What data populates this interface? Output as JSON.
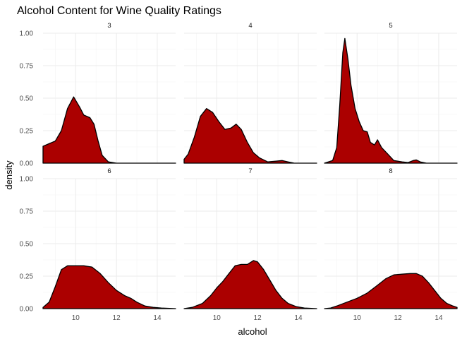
{
  "chart_data": {
    "type": "area",
    "title": "Alcohol Content for Wine Quality Ratings",
    "xlabel": "alcohol",
    "ylabel": "density",
    "xlim": [
      8.4,
      14.9
    ],
    "ylim": [
      0,
      1.0
    ],
    "x_ticks": [
      10,
      12,
      14
    ],
    "y_ticks": [
      0.0,
      0.25,
      0.5,
      0.75,
      1.0
    ],
    "x_tick_labels": [
      "10",
      "12",
      "14"
    ],
    "y_tick_labels": [
      "0.00",
      "0.25",
      "0.50",
      "0.75",
      "1.00"
    ],
    "fill_color": "#ab0000",
    "line_color": "#000000",
    "grid": true,
    "facets": [
      {
        "label": "3",
        "points": [
          [
            8.4,
            0.13
          ],
          [
            8.7,
            0.15
          ],
          [
            9.0,
            0.17
          ],
          [
            9.3,
            0.25
          ],
          [
            9.6,
            0.42
          ],
          [
            9.9,
            0.51
          ],
          [
            10.2,
            0.43
          ],
          [
            10.4,
            0.37
          ],
          [
            10.7,
            0.35
          ],
          [
            10.9,
            0.3
          ],
          [
            11.1,
            0.17
          ],
          [
            11.3,
            0.06
          ],
          [
            11.6,
            0.01
          ],
          [
            12.0,
            0.0
          ],
          [
            13.0,
            0.0
          ],
          [
            14.9,
            0.0
          ]
        ]
      },
      {
        "label": "4",
        "points": [
          [
            8.4,
            0.03
          ],
          [
            8.6,
            0.07
          ],
          [
            8.9,
            0.2
          ],
          [
            9.2,
            0.36
          ],
          [
            9.5,
            0.42
          ],
          [
            9.8,
            0.39
          ],
          [
            10.1,
            0.32
          ],
          [
            10.4,
            0.26
          ],
          [
            10.7,
            0.27
          ],
          [
            10.95,
            0.3
          ],
          [
            11.2,
            0.26
          ],
          [
            11.5,
            0.16
          ],
          [
            11.8,
            0.08
          ],
          [
            12.1,
            0.04
          ],
          [
            12.5,
            0.01
          ],
          [
            12.9,
            0.015
          ],
          [
            13.2,
            0.02
          ],
          [
            13.5,
            0.01
          ],
          [
            13.8,
            0.0
          ],
          [
            14.9,
            0.0
          ]
        ]
      },
      {
        "label": "5",
        "points": [
          [
            8.4,
            0.0
          ],
          [
            8.8,
            0.02
          ],
          [
            9.0,
            0.12
          ],
          [
            9.15,
            0.45
          ],
          [
            9.3,
            0.85
          ],
          [
            9.4,
            0.96
          ],
          [
            9.55,
            0.8
          ],
          [
            9.7,
            0.6
          ],
          [
            9.9,
            0.42
          ],
          [
            10.1,
            0.32
          ],
          [
            10.3,
            0.25
          ],
          [
            10.5,
            0.24
          ],
          [
            10.65,
            0.16
          ],
          [
            10.85,
            0.14
          ],
          [
            11.0,
            0.18
          ],
          [
            11.2,
            0.12
          ],
          [
            11.5,
            0.07
          ],
          [
            11.8,
            0.02
          ],
          [
            12.2,
            0.01
          ],
          [
            12.5,
            0.005
          ],
          [
            12.75,
            0.02
          ],
          [
            12.9,
            0.025
          ],
          [
            13.1,
            0.01
          ],
          [
            13.4,
            0.0
          ],
          [
            14.9,
            0.0
          ]
        ]
      },
      {
        "label": "6",
        "points": [
          [
            8.4,
            0.01
          ],
          [
            8.7,
            0.05
          ],
          [
            9.0,
            0.17
          ],
          [
            9.3,
            0.3
          ],
          [
            9.6,
            0.33
          ],
          [
            10.0,
            0.33
          ],
          [
            10.4,
            0.33
          ],
          [
            10.8,
            0.32
          ],
          [
            11.2,
            0.27
          ],
          [
            11.6,
            0.2
          ],
          [
            12.0,
            0.14
          ],
          [
            12.4,
            0.1
          ],
          [
            12.7,
            0.08
          ],
          [
            13.0,
            0.05
          ],
          [
            13.4,
            0.02
          ],
          [
            13.8,
            0.01
          ],
          [
            14.2,
            0.005
          ],
          [
            14.9,
            0.0
          ]
        ]
      },
      {
        "label": "7",
        "points": [
          [
            8.4,
            0.0
          ],
          [
            8.8,
            0.01
          ],
          [
            9.3,
            0.04
          ],
          [
            9.7,
            0.1
          ],
          [
            10.0,
            0.16
          ],
          [
            10.3,
            0.21
          ],
          [
            10.6,
            0.27
          ],
          [
            10.9,
            0.33
          ],
          [
            11.2,
            0.34
          ],
          [
            11.5,
            0.34
          ],
          [
            11.8,
            0.37
          ],
          [
            12.0,
            0.36
          ],
          [
            12.3,
            0.3
          ],
          [
            12.6,
            0.22
          ],
          [
            12.9,
            0.14
          ],
          [
            13.2,
            0.08
          ],
          [
            13.5,
            0.04
          ],
          [
            13.9,
            0.015
          ],
          [
            14.3,
            0.005
          ],
          [
            14.9,
            0.0
          ]
        ]
      },
      {
        "label": "8",
        "points": [
          [
            8.4,
            0.0
          ],
          [
            8.7,
            0.005
          ],
          [
            9.0,
            0.02
          ],
          [
            9.5,
            0.05
          ],
          [
            10.0,
            0.08
          ],
          [
            10.5,
            0.12
          ],
          [
            11.0,
            0.18
          ],
          [
            11.4,
            0.23
          ],
          [
            11.8,
            0.26
          ],
          [
            12.2,
            0.265
          ],
          [
            12.6,
            0.27
          ],
          [
            12.9,
            0.27
          ],
          [
            13.2,
            0.25
          ],
          [
            13.5,
            0.2
          ],
          [
            13.8,
            0.14
          ],
          [
            14.1,
            0.08
          ],
          [
            14.4,
            0.04
          ],
          [
            14.7,
            0.02
          ],
          [
            14.9,
            0.01
          ]
        ]
      }
    ]
  }
}
